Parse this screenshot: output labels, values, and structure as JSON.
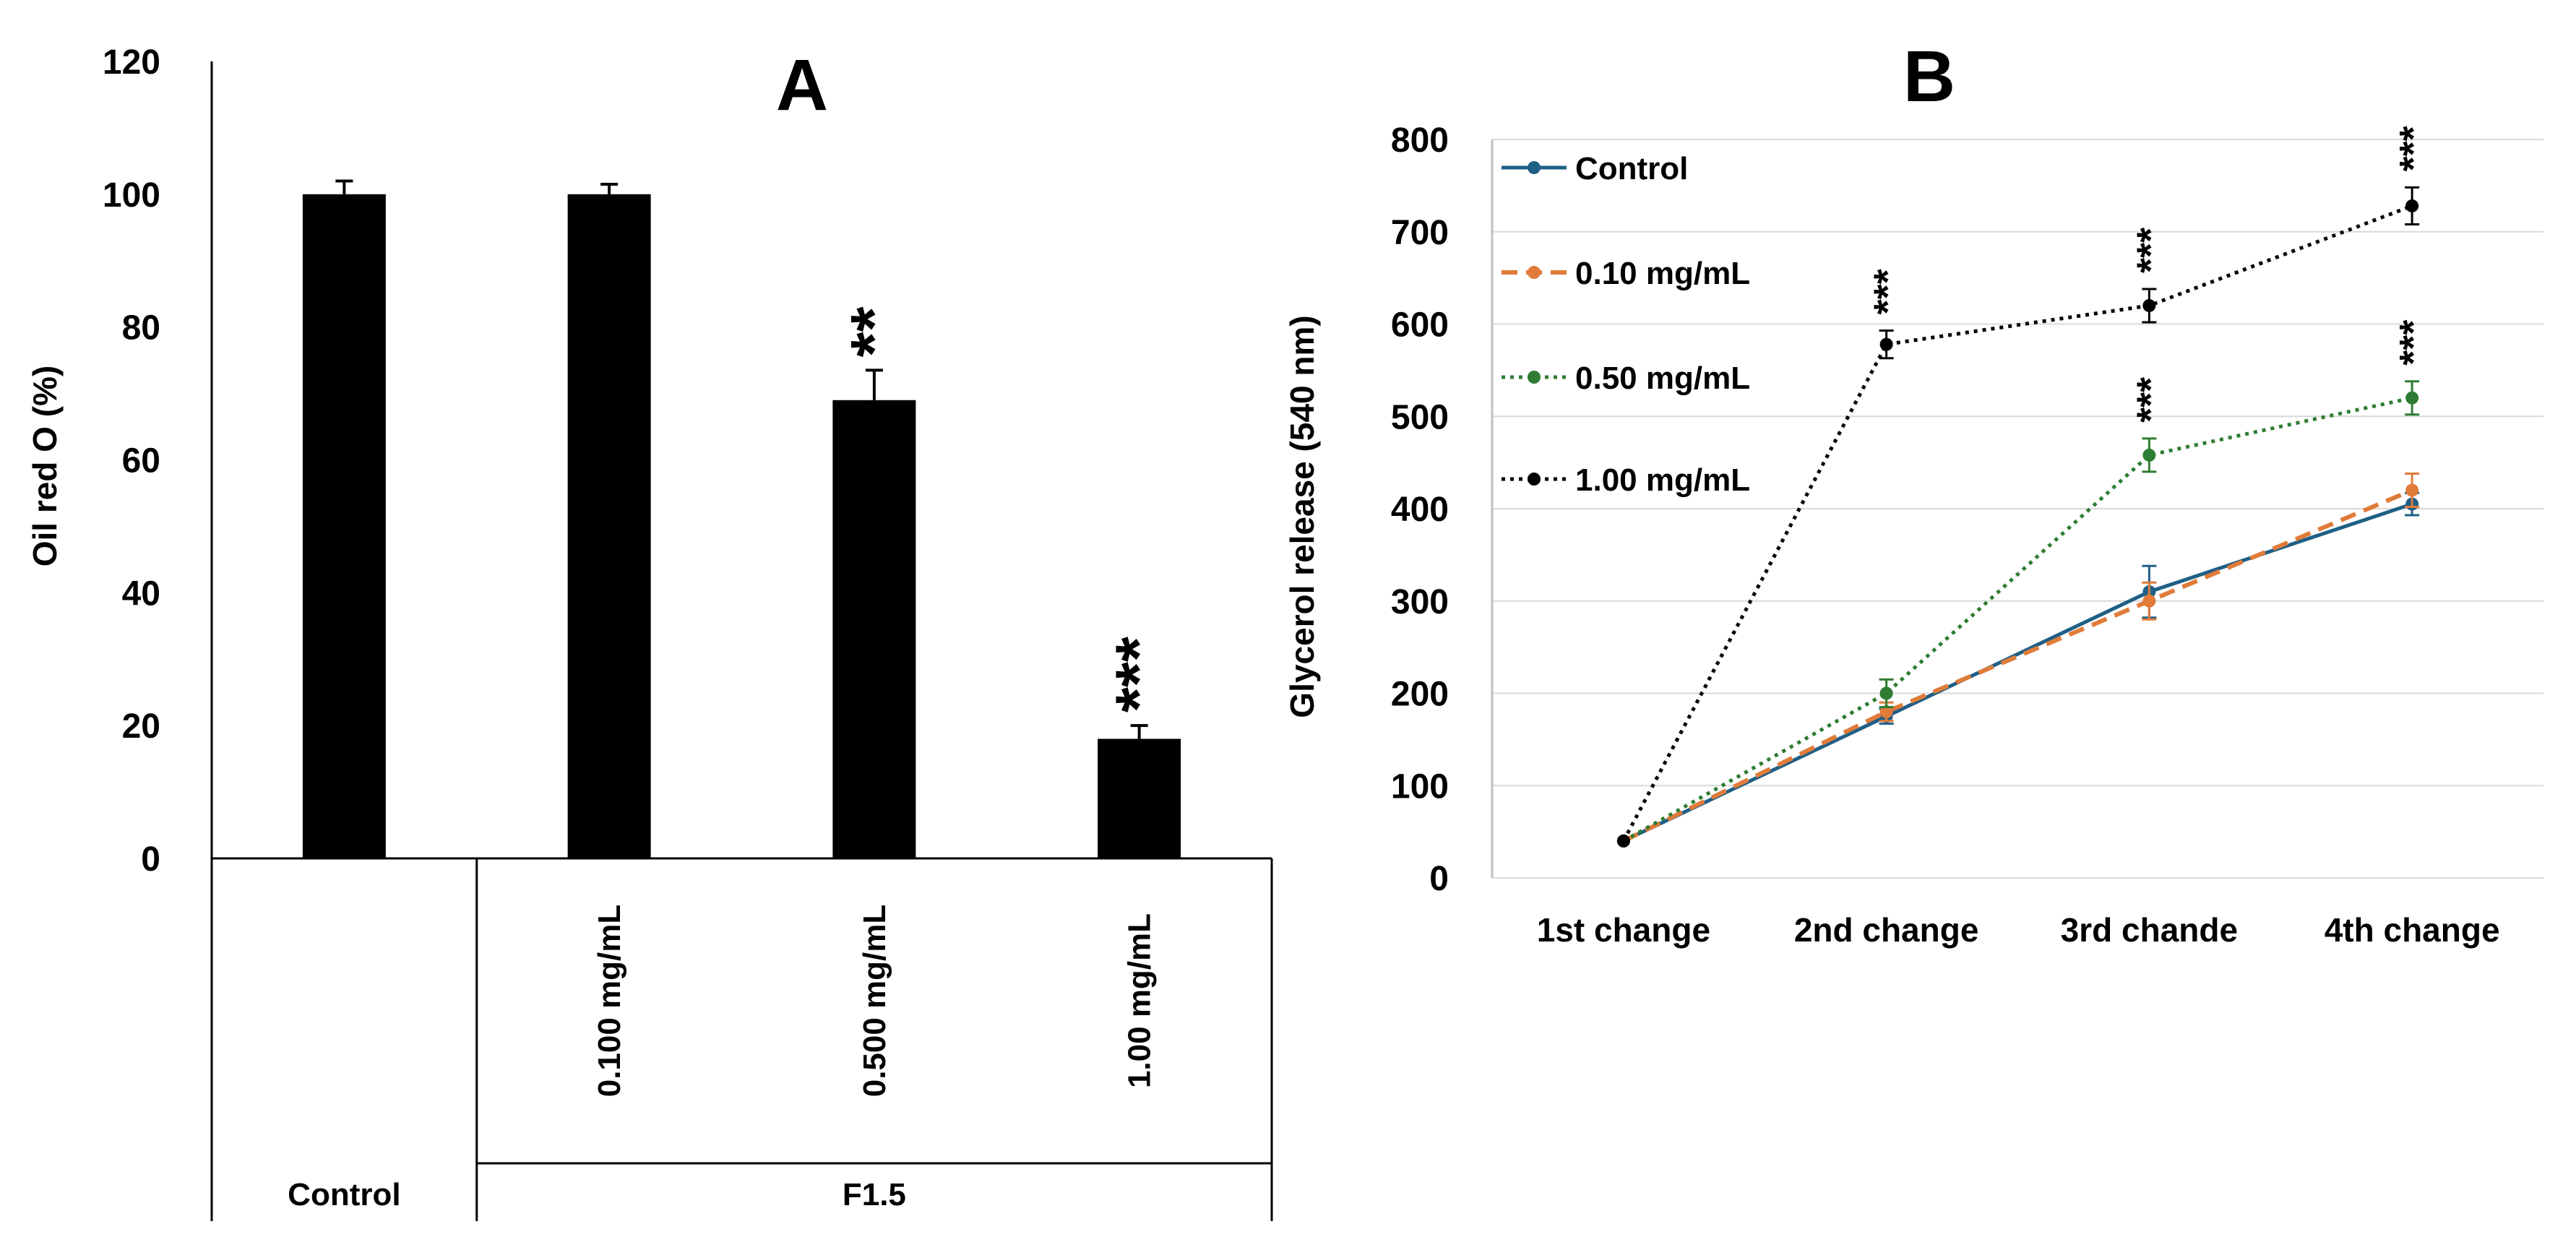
{
  "colors": {
    "bar": "#000000",
    "grid": "#d9d9d9",
    "axis": "#000000"
  },
  "chart_data": [
    {
      "panel": "A",
      "type": "bar",
      "title": "A",
      "ylabel": "Oil red O (%)",
      "ylim": [
        0,
        120
      ],
      "yticks": [
        "0",
        "20",
        "40",
        "60",
        "80",
        "100",
        "120"
      ],
      "categories": [
        "Control",
        "0.100 mg/mL",
        "0.500 mg/mL",
        "1.00 mg/mL"
      ],
      "values": [
        100,
        100,
        69,
        18
      ],
      "errors": [
        2,
        1.5,
        4.5,
        2
      ],
      "significance": [
        "",
        "",
        "**",
        "***"
      ],
      "groups": [
        {
          "label": "Control",
          "span": [
            0,
            0
          ]
        },
        {
          "label": "F1.5",
          "span": [
            1,
            3
          ]
        }
      ],
      "grid": false
    },
    {
      "panel": "B",
      "type": "line",
      "title": "B",
      "ylabel": "Glycerol  release (540 nm)",
      "ylim": [
        0,
        800
      ],
      "yticks": [
        "0",
        "100",
        "200",
        "300",
        "400",
        "500",
        "600",
        "700",
        "800"
      ],
      "categories": [
        "1st change",
        "2nd change",
        "3rd chande",
        "4th change"
      ],
      "grid": true,
      "legend_position": "top-left",
      "series": [
        {
          "name": "Control",
          "color": "#1f5f86",
          "dash": "solid",
          "values": [
            40,
            175,
            310,
            405
          ],
          "errors": [
            0,
            8,
            28,
            12
          ],
          "significance": [
            "",
            "",
            "",
            ""
          ]
        },
        {
          "name": "0.10 mg/mL",
          "color": "#e07b39",
          "dash": "dashed",
          "values": [
            40,
            180,
            300,
            420
          ],
          "errors": [
            0,
            10,
            20,
            18
          ],
          "significance": [
            "",
            "",
            "",
            ""
          ]
        },
        {
          "name": "0.50 mg/mL",
          "color": "#2e7d32",
          "dash": "dotted",
          "values": [
            40,
            200,
            458,
            520
          ],
          "errors": [
            0,
            15,
            18,
            18
          ],
          "significance": [
            "",
            "",
            "***",
            "***"
          ]
        },
        {
          "name": "1.00 mg/mL",
          "color": "#000000",
          "dash": "dotted",
          "values": [
            40,
            578,
            620,
            728
          ],
          "errors": [
            0,
            15,
            18,
            20
          ],
          "significance": [
            "",
            "***",
            "***",
            "***"
          ]
        }
      ]
    }
  ]
}
